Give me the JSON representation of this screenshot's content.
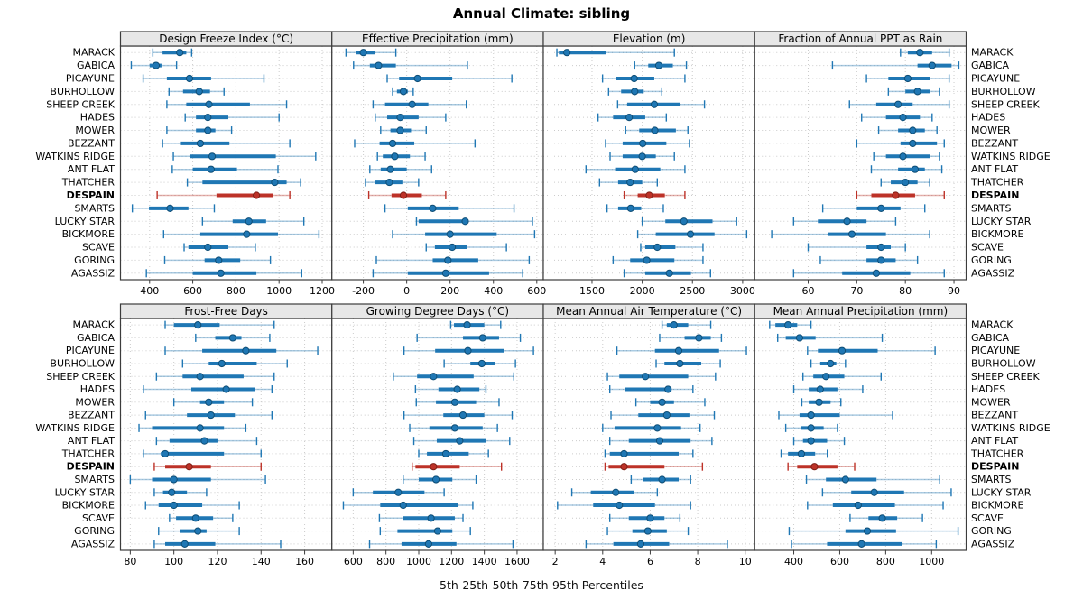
{
  "title": "Annual Climate: sibling",
  "caption": "5th-25th-50th-75th-95th Percentiles",
  "colors": {
    "primary": "#1f77b4",
    "primary_dark": "#0e4d75",
    "primary_light": "rgba(31,119,180,0.38)",
    "highlight": "#bd3228",
    "highlight_dark": "#7e1f16",
    "highlight_light": "rgba(189,50,40,0.38)",
    "strip_bg": "#e7e7e7",
    "grid": "#cccccc",
    "border": "#3c3c3c",
    "text": "#000000"
  },
  "highlight_site": "DESPAIN",
  "sites": [
    "MARACK",
    "GABICA",
    "PICAYUNE",
    "BURHOLLOW",
    "SHEEP CREEK",
    "HADES",
    "MOWER",
    "BEZZANT",
    "WATKINS RIDGE",
    "ANT FLAT",
    "THATCHER",
    "DESPAIN",
    "SMARTS",
    "LUCKY STAR",
    "BICKMORE",
    "SCAVE",
    "GORING",
    "AGASSIZ"
  ],
  "chart_data": {
    "type": "dot-whisker-percentiles",
    "percentile_labels": [
      "5th",
      "25th",
      "50th",
      "75th",
      "95th"
    ],
    "legend_position": "none",
    "grid": "dotted",
    "panels": [
      {
        "id": "design-freeze-index",
        "title": "Design Freeze Index (°C)",
        "grid_row": 0,
        "grid_col": 0,
        "ticks": [
          400,
          600,
          800,
          1000,
          1200
        ],
        "domain": [
          265,
          1245
        ],
        "values": [
          [
            415,
            460,
            540,
            570,
            595
          ],
          [
            315,
            400,
            430,
            455,
            525
          ],
          [
            370,
            480,
            585,
            685,
            930
          ],
          [
            490,
            555,
            630,
            680,
            745
          ],
          [
            480,
            570,
            675,
            865,
            1035
          ],
          [
            565,
            615,
            670,
            765,
            1000
          ],
          [
            480,
            615,
            670,
            705,
            780
          ],
          [
            460,
            545,
            635,
            770,
            1050
          ],
          [
            510,
            585,
            690,
            985,
            1170
          ],
          [
            505,
            600,
            685,
            805,
            995
          ],
          [
            575,
            645,
            980,
            1035,
            1100
          ],
          [
            435,
            710,
            895,
            970,
            1050
          ],
          [
            320,
            397,
            495,
            580,
            700
          ],
          [
            645,
            785,
            860,
            940,
            1115
          ],
          [
            465,
            635,
            850,
            995,
            1185
          ],
          [
            560,
            580,
            670,
            765,
            890
          ],
          [
            470,
            655,
            720,
            820,
            960
          ],
          [
            385,
            600,
            730,
            895,
            1105
          ]
        ]
      },
      {
        "id": "effective-precipitation",
        "title": "Effective Precipitation (mm)",
        "grid_row": 0,
        "grid_col": 1,
        "ticks": [
          -200,
          0,
          200,
          400,
          600
        ],
        "domain": [
          -345,
          630
        ],
        "values": [
          [
            -280,
            -235,
            -200,
            -145,
            -50
          ],
          [
            -245,
            -170,
            -130,
            -50,
            280
          ],
          [
            -90,
            -35,
            50,
            210,
            485
          ],
          [
            -65,
            -45,
            -15,
            5,
            30
          ],
          [
            -155,
            -100,
            25,
            100,
            275
          ],
          [
            -145,
            -90,
            -30,
            55,
            180
          ],
          [
            -120,
            -75,
            -30,
            20,
            90
          ],
          [
            -240,
            -125,
            -65,
            35,
            315
          ],
          [
            -135,
            -110,
            -55,
            15,
            85
          ],
          [
            -170,
            -120,
            -75,
            0,
            115
          ],
          [
            -190,
            -145,
            -80,
            -20,
            55
          ],
          [
            -175,
            -70,
            -15,
            70,
            180
          ],
          [
            -100,
            5,
            120,
            240,
            495
          ],
          [
            45,
            55,
            270,
            285,
            580
          ],
          [
            -65,
            85,
            200,
            415,
            590
          ],
          [
            90,
            130,
            210,
            280,
            460
          ],
          [
            -140,
            120,
            190,
            330,
            565
          ],
          [
            -155,
            5,
            180,
            380,
            535
          ]
        ]
      },
      {
        "id": "elevation",
        "title": "Elevation (m)",
        "grid_row": 0,
        "grid_col": 2,
        "ticks": [
          1500,
          2000,
          2500,
          3000
        ],
        "domain": [
          1015,
          3120
        ],
        "values": [
          [
            1150,
            1170,
            1250,
            1640,
            2320
          ],
          [
            1925,
            2060,
            2165,
            2305,
            2440
          ],
          [
            1605,
            1740,
            1920,
            2120,
            2425
          ],
          [
            1665,
            1790,
            1925,
            2015,
            2195
          ],
          [
            1755,
            1850,
            2120,
            2380,
            2620
          ],
          [
            1560,
            1710,
            1870,
            2030,
            2240
          ],
          [
            1835,
            1970,
            2125,
            2335,
            2455
          ],
          [
            1635,
            1805,
            2005,
            2240,
            2470
          ],
          [
            1680,
            1805,
            2000,
            2135,
            2320
          ],
          [
            1440,
            1730,
            1930,
            2180,
            2425
          ],
          [
            1575,
            1760,
            1880,
            2000,
            2150
          ],
          [
            1820,
            1955,
            2070,
            2225,
            2425
          ],
          [
            1650,
            1760,
            1885,
            1990,
            2210
          ],
          [
            2000,
            2230,
            2415,
            2700,
            2940
          ],
          [
            1955,
            2135,
            2480,
            2720,
            3040
          ],
          [
            1985,
            2030,
            2150,
            2330,
            2605
          ],
          [
            1710,
            1880,
            2045,
            2320,
            2605
          ],
          [
            1820,
            2030,
            2270,
            2485,
            2680
          ]
        ]
      },
      {
        "id": "fraction-ppt-rain",
        "title": "Fraction of Annual PPT as Rain",
        "grid_row": 0,
        "grid_col": 3,
        "ticks": [
          60,
          70,
          80,
          90
        ],
        "domain": [
          49,
          92.5
        ],
        "values": [
          [
            79,
            80.5,
            83,
            85.5,
            89
          ],
          [
            65,
            82.5,
            85.5,
            89.5,
            91
          ],
          [
            72,
            76.5,
            80.5,
            85,
            89
          ],
          [
            76.5,
            80,
            82.5,
            85,
            87
          ],
          [
            68.5,
            74,
            78.5,
            81.5,
            89
          ],
          [
            71,
            76,
            79.5,
            83,
            85.5
          ],
          [
            74.5,
            78.5,
            81.5,
            84,
            86.5
          ],
          [
            70,
            79,
            81.5,
            86.5,
            88
          ],
          [
            73.5,
            76,
            79.5,
            85,
            87
          ],
          [
            73,
            78.5,
            82,
            84,
            87.5
          ],
          [
            75,
            77,
            80,
            82.5,
            85
          ],
          [
            70,
            73,
            78,
            82,
            88
          ],
          [
            63,
            70,
            75,
            79,
            84
          ],
          [
            57,
            62,
            68,
            72,
            78
          ],
          [
            52.5,
            64,
            69,
            76,
            85
          ],
          [
            60,
            72,
            75,
            77,
            80
          ],
          [
            62.5,
            72,
            75,
            78,
            82.5
          ],
          [
            57,
            67,
            74,
            81,
            88
          ]
        ]
      },
      {
        "id": "frost-free-days",
        "title": "Frost-Free Days",
        "grid_row": 1,
        "grid_col": 0,
        "ticks": [
          80,
          100,
          120,
          140,
          160
        ],
        "domain": [
          75.5,
          172.5
        ],
        "values": [
          [
            96,
            100,
            111,
            121,
            146
          ],
          [
            110,
            119,
            127,
            131,
            144
          ],
          [
            96,
            113,
            133,
            147,
            166
          ],
          [
            104,
            116,
            122,
            138,
            152
          ],
          [
            92,
            104,
            112,
            132,
            146
          ],
          [
            86,
            108,
            124,
            137,
            145
          ],
          [
            100,
            112,
            116,
            123,
            136
          ],
          [
            87,
            106,
            117,
            128,
            145
          ],
          [
            84,
            90,
            112,
            123,
            133
          ],
          [
            92,
            98,
            114,
            120,
            138
          ],
          [
            86,
            94,
            96,
            123,
            140
          ],
          [
            91,
            96,
            107,
            117,
            140
          ],
          [
            80,
            90,
            100,
            117,
            142
          ],
          [
            91,
            95,
            99,
            106,
            115
          ],
          [
            87,
            93,
            100,
            113,
            130
          ],
          [
            98,
            101,
            110,
            118,
            127
          ],
          [
            93,
            103,
            111,
            115,
            130
          ],
          [
            91,
            96,
            105,
            119,
            149
          ]
        ]
      },
      {
        "id": "growing-degree-days",
        "title": "Growing Degree Days (°C)",
        "grid_row": 1,
        "grid_col": 1,
        "ticks": [
          600,
          800,
          1000,
          1200,
          1400,
          1600
        ],
        "domain": [
          470,
          1760
        ],
        "values": [
          [
            1195,
            1215,
            1295,
            1400,
            1500
          ],
          [
            990,
            1270,
            1390,
            1490,
            1620
          ],
          [
            910,
            1100,
            1300,
            1520,
            1700
          ],
          [
            1155,
            1315,
            1385,
            1465,
            1590
          ],
          [
            845,
            990,
            1090,
            1335,
            1580
          ],
          [
            980,
            1120,
            1235,
            1370,
            1410
          ],
          [
            985,
            1105,
            1220,
            1350,
            1490
          ],
          [
            910,
            1150,
            1270,
            1400,
            1570
          ],
          [
            945,
            1065,
            1220,
            1390,
            1480
          ],
          [
            970,
            1110,
            1250,
            1410,
            1555
          ],
          [
            1000,
            1050,
            1165,
            1305,
            1425
          ],
          [
            960,
            980,
            1090,
            1250,
            1505
          ],
          [
            905,
            1000,
            1105,
            1205,
            1350
          ],
          [
            600,
            720,
            875,
            1035,
            1155
          ],
          [
            540,
            765,
            905,
            1240,
            1330
          ],
          [
            760,
            905,
            1075,
            1220,
            1270
          ],
          [
            765,
            870,
            1115,
            1205,
            1315
          ],
          [
            700,
            895,
            1060,
            1230,
            1575
          ]
        ]
      },
      {
        "id": "mean-annual-air-temperature",
        "title": "Mean Annual Air Temperature (°C)",
        "grid_row": 1,
        "grid_col": 2,
        "ticks": [
          2,
          4,
          6,
          8,
          10
        ],
        "domain": [
          1.5,
          10.4
        ],
        "values": [
          [
            6.5,
            6.7,
            7.0,
            7.6,
            8.55
          ],
          [
            6.4,
            7.45,
            8.05,
            8.55,
            9.0
          ],
          [
            4.6,
            6.2,
            7.2,
            8.9,
            10.05
          ],
          [
            6.25,
            6.6,
            7.25,
            8.15,
            8.95
          ],
          [
            4.2,
            4.7,
            5.8,
            7.6,
            8.75
          ],
          [
            4.3,
            4.95,
            6.75,
            6.9,
            7.8
          ],
          [
            5.4,
            6.0,
            6.5,
            7.0,
            8.3
          ],
          [
            4.35,
            5.5,
            6.7,
            7.65,
            8.7
          ],
          [
            4.0,
            4.5,
            6.3,
            7.3,
            8.1
          ],
          [
            4.3,
            5.1,
            6.4,
            7.7,
            8.6
          ],
          [
            4.1,
            4.3,
            4.9,
            7.2,
            7.8
          ],
          [
            4.1,
            4.25,
            4.9,
            6.6,
            8.2
          ],
          [
            5.2,
            5.7,
            6.5,
            7.2,
            7.7
          ],
          [
            2.7,
            3.5,
            4.55,
            5.3,
            6.3
          ],
          [
            2.1,
            3.6,
            4.7,
            6.2,
            7.7
          ],
          [
            4.3,
            5.1,
            6.0,
            6.6,
            7.25
          ],
          [
            4.2,
            5.25,
            5.9,
            6.7,
            7.6
          ],
          [
            3.3,
            4.45,
            5.6,
            6.8,
            9.25
          ]
        ]
      },
      {
        "id": "mean-annual-precipitation",
        "title": "Mean Annual Precipitation (mm)",
        "grid_row": 1,
        "grid_col": 3,
        "ticks": [
          400,
          600,
          800,
          1000
        ],
        "domain": [
          230,
          1150
        ],
        "values": [
          [
            295,
            320,
            375,
            415,
            475
          ],
          [
            330,
            365,
            425,
            495,
            785
          ],
          [
            460,
            505,
            610,
            765,
            1015
          ],
          [
            475,
            515,
            560,
            585,
            625
          ],
          [
            440,
            485,
            540,
            620,
            780
          ],
          [
            400,
            465,
            515,
            590,
            700
          ],
          [
            435,
            465,
            510,
            560,
            605
          ],
          [
            335,
            425,
            475,
            600,
            830
          ],
          [
            365,
            430,
            475,
            530,
            590
          ],
          [
            400,
            440,
            475,
            545,
            620
          ],
          [
            345,
            375,
            433,
            493,
            546
          ],
          [
            375,
            415,
            490,
            590,
            665
          ],
          [
            455,
            540,
            625,
            760,
            1035
          ],
          [
            525,
            650,
            750,
            880,
            1085
          ],
          [
            460,
            570,
            680,
            840,
            1050
          ],
          [
            645,
            725,
            785,
            850,
            960
          ],
          [
            380,
            625,
            720,
            845,
            1115
          ],
          [
            390,
            545,
            695,
            870,
            1020
          ]
        ]
      }
    ]
  }
}
